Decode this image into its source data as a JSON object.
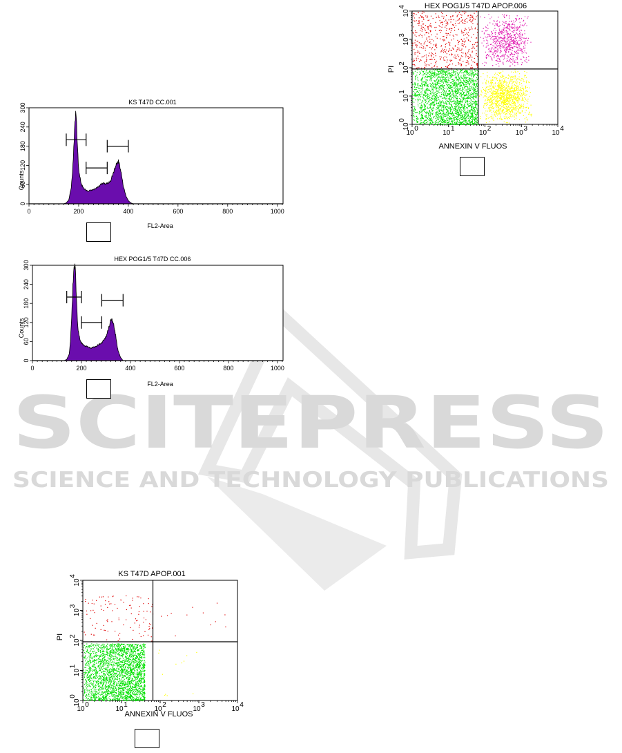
{
  "watermark": {
    "title": "SCITEPRESS",
    "subtitle": "SCIENCE AND TECHNOLOGY PUBLICATIONS"
  },
  "chart_data": [
    {
      "id": "hist1",
      "type": "area",
      "title": "KS T47D CC.001",
      "xlabel": "FL2-Area",
      "ylabel": "Counts",
      "xlim": [
        0,
        1023
      ],
      "ylim": [
        0,
        300
      ],
      "x_ticks": [
        0,
        200,
        400,
        600,
        800,
        1000
      ],
      "y_ticks": [
        0,
        60,
        120,
        180,
        240,
        300
      ],
      "fill_color": "#6a0dad",
      "x": [
        140,
        150,
        160,
        170,
        175,
        180,
        185,
        188,
        190,
        193,
        197,
        200,
        205,
        210,
        215,
        220,
        225,
        230,
        240,
        250,
        260,
        270,
        280,
        290,
        300,
        310,
        320,
        330,
        340,
        345,
        350,
        355,
        360,
        365,
        370,
        375,
        380,
        390,
        400,
        410,
        420
      ],
      "values": [
        0,
        3,
        12,
        50,
        100,
        170,
        250,
        290,
        280,
        220,
        150,
        110,
        85,
        65,
        55,
        48,
        45,
        42,
        40,
        42,
        45,
        48,
        55,
        60,
        65,
        62,
        65,
        75,
        95,
        110,
        120,
        130,
        132,
        120,
        100,
        80,
        55,
        25,
        10,
        3,
        0
      ],
      "gates": [
        {
          "from": 150,
          "to": 230,
          "y": 200
        },
        {
          "from": 230,
          "to": 315,
          "y": 112
        },
        {
          "from": 315,
          "to": 400,
          "y": 180
        }
      ]
    },
    {
      "id": "hist2",
      "type": "area",
      "title": "HEX POG1/5 T47D CC.006",
      "xlabel": "FL2-Area",
      "ylabel": "Counts",
      "xlim": [
        0,
        1023
      ],
      "ylim": [
        0,
        300
      ],
      "x_ticks": [
        0,
        200,
        400,
        600,
        800,
        1000
      ],
      "y_ticks": [
        0,
        60,
        120,
        180,
        240,
        300
      ],
      "fill_color": "#6a0dad",
      "x": [
        130,
        140,
        150,
        155,
        160,
        165,
        170,
        173,
        175,
        178,
        182,
        185,
        190,
        195,
        200,
        210,
        220,
        230,
        240,
        250,
        260,
        270,
        280,
        290,
        300,
        305,
        310,
        315,
        320,
        325,
        330,
        335,
        340,
        345,
        350,
        360,
        370
      ],
      "values": [
        0,
        4,
        20,
        60,
        140,
        230,
        290,
        305,
        300,
        230,
        150,
        110,
        80,
        65,
        55,
        48,
        45,
        42,
        40,
        42,
        45,
        50,
        55,
        62,
        75,
        85,
        100,
        115,
        125,
        130,
        118,
        100,
        78,
        50,
        30,
        10,
        0
      ],
      "gates": [
        {
          "from": 140,
          "to": 200,
          "y": 200
        },
        {
          "from": 200,
          "to": 283,
          "y": 120
        },
        {
          "from": 283,
          "to": 370,
          "y": 190
        }
      ]
    },
    {
      "id": "dot1",
      "type": "scatter",
      "title": "HEX POG1/5 T47D APOP.006",
      "xlabel": "ANNEXIN V FLUOS",
      "ylabel": "PI",
      "x_scale": "log",
      "y_scale": "log",
      "xlim": [
        1,
        10000
      ],
      "ylim": [
        1,
        10000
      ],
      "x_ticks": [
        "10",
        "10",
        "10",
        "10",
        "10"
      ],
      "x_tick_exponents": [
        "0",
        "1",
        "2",
        "3",
        "4"
      ],
      "y_tick_exponents": [
        "0",
        "1",
        "2",
        "3",
        "4"
      ],
      "quadrant_x": 65,
      "quadrant_y": 90,
      "populations": [
        {
          "name": "",
          "color": "#00e000",
          "count": 2200,
          "x_log_range": [
            0,
            1.81
          ],
          "y_log_range": [
            0,
            1.95
          ],
          "density": "dense"
        },
        {
          "name": "",
          "color": "#ffff00",
          "count": 1100,
          "x_log_range": [
            1.82,
            3.3
          ],
          "y_log_range": [
            0,
            1.95
          ],
          "density": "medium"
        },
        {
          "name": "",
          "color": "#e00000",
          "count": 550,
          "x_log_range": [
            0,
            1.81
          ],
          "y_log_range": [
            1.96,
            4
          ],
          "density": "sparse"
        },
        {
          "name": "",
          "color": "#e01cb0",
          "count": 700,
          "x_log_range": [
            1.82,
            3.3
          ],
          "y_log_range": [
            2.0,
            3.95
          ],
          "density": "medium"
        }
      ]
    },
    {
      "id": "dot2",
      "type": "scatter",
      "title": "KS T47D APOP.001",
      "xlabel": "ANNEXIN V FLUOS",
      "ylabel": "PI",
      "x_scale": "log",
      "y_scale": "log",
      "xlim": [
        1,
        10000
      ],
      "ylim": [
        1,
        10000
      ],
      "x_tick_exponents": [
        "0",
        "1",
        "2",
        "3",
        "4"
      ],
      "y_tick_exponents": [
        "0",
        "1",
        "2",
        "3",
        "4"
      ],
      "quadrant_x": 65,
      "quadrant_y": 90,
      "populations": [
        {
          "name": "",
          "color": "#00e000",
          "count": 2600,
          "x_log_range": [
            0,
            1.6
          ],
          "y_log_range": [
            0,
            1.9
          ],
          "density": "dense"
        },
        {
          "name": "",
          "color": "#ffff00",
          "count": 12,
          "x_log_range": [
            1.82,
            3.0
          ],
          "y_log_range": [
            0,
            1.9
          ],
          "density": "sparse"
        },
        {
          "name": "",
          "color": "#e00000",
          "count": 110,
          "x_log_range": [
            0,
            1.81
          ],
          "y_log_range": [
            1.96,
            3.5
          ],
          "density": "sparse"
        },
        {
          "name": "",
          "color": "#e00000",
          "count": 12,
          "x_log_range": [
            1.82,
            3.7
          ],
          "y_log_range": [
            2.0,
            3.3
          ],
          "density": "sparse"
        }
      ]
    }
  ]
}
